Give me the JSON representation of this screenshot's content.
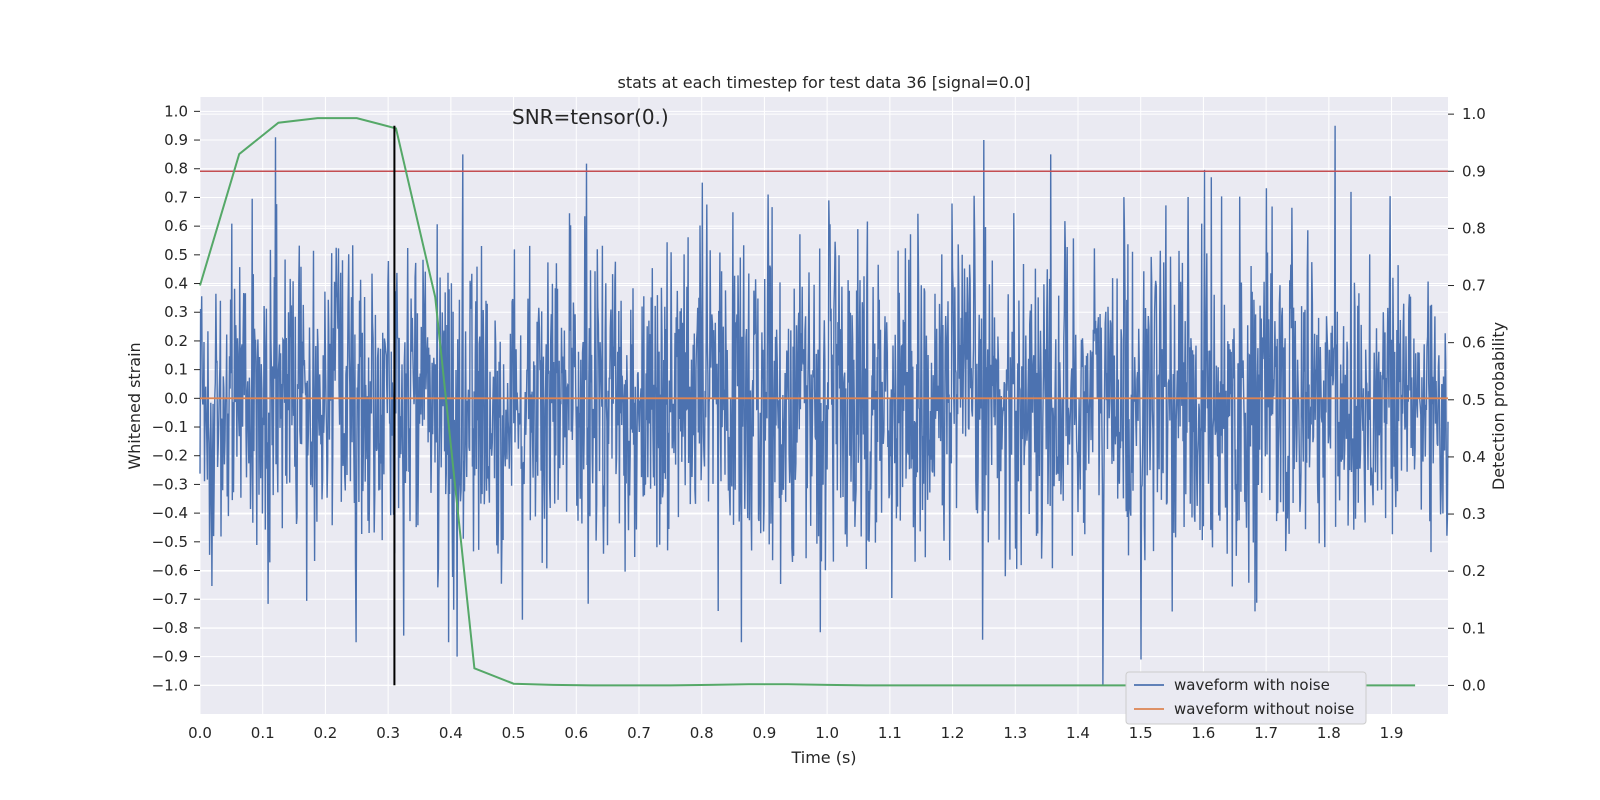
{
  "chart_data": {
    "type": "line",
    "title": "stats at each timestep for test data 36 [signal=0.0]",
    "annotation": "SNR=tensor(0.)",
    "xlabel": "Time (s)",
    "ylabel": "Whitened strain",
    "y2label": "Detection probability",
    "xlim": [
      0.0,
      1.99
    ],
    "ylim": [
      -1.1,
      1.05
    ],
    "y2lim": [
      -0.05,
      1.03
    ],
    "xticks": [
      "0.0",
      "0.1",
      "0.2",
      "0.3",
      "0.4",
      "0.5",
      "0.6",
      "0.7",
      "0.8",
      "0.9",
      "1.0",
      "1.1",
      "1.2",
      "1.3",
      "1.4",
      "1.5",
      "1.6",
      "1.7",
      "1.8",
      "1.9"
    ],
    "yticks": [
      "-1.0",
      "-0.9",
      "-0.8",
      "-0.7",
      "-0.6",
      "-0.5",
      "-0.4",
      "-0.3",
      "-0.2",
      "-0.1",
      "0.0",
      "0.1",
      "0.2",
      "0.3",
      "0.4",
      "0.5",
      "0.6",
      "0.7",
      "0.8",
      "0.9",
      "1.0"
    ],
    "y2ticks": [
      "0.0",
      "0.1",
      "0.2",
      "0.3",
      "0.4",
      "0.5",
      "0.6",
      "0.7",
      "0.8",
      "0.9",
      "1.0"
    ],
    "grid": true,
    "legend_position": "lower-right",
    "series": [
      {
        "name": "waveform with noise",
        "axis": "left",
        "color": "#4c72b0",
        "x_range": [
          0.0,
          1.99
        ],
        "values_estimated": "dense noise, approx 0.0 ± 0.3 with spikes to ±0.95",
        "peaks": [
          {
            "x": 0.12,
            "y": 0.91
          },
          {
            "x": 1.25,
            "y": 0.9
          },
          {
            "x": 1.81,
            "y": 0.95
          },
          {
            "x": 1.44,
            "y": -1.0
          },
          {
            "x": 1.5,
            "y": -0.91
          },
          {
            "x": 0.41,
            "y": -0.9
          }
        ]
      },
      {
        "name": "waveform without noise",
        "axis": "left",
        "color": "#dd8452",
        "x": [
          0.0,
          1.99
        ],
        "y": [
          0.0,
          0.0
        ]
      },
      {
        "axis": "right",
        "color": "#55a868",
        "x": [
          0.0,
          0.0625,
          0.125,
          0.1875,
          0.25,
          0.3125,
          0.375,
          0.4375,
          0.5,
          0.5625,
          0.625,
          0.6875,
          0.75,
          0.8125,
          0.875,
          0.9375,
          1.0,
          1.0625,
          1.125,
          1.1875,
          1.25,
          1.3125,
          1.375,
          1.4375,
          1.5,
          1.5625,
          1.625,
          1.6875,
          1.75,
          1.8125,
          1.875,
          1.9375
        ],
        "y": [
          0.7,
          0.93,
          0.985,
          0.993,
          0.993,
          0.975,
          0.68,
          0.03,
          0.003,
          0.001,
          0.0,
          0.0,
          0.0,
          0.001,
          0.002,
          0.002,
          0.001,
          0.0,
          0.0,
          0.0,
          0.0,
          0.0,
          0.0,
          0.0,
          0.0,
          0.0,
          0.0,
          0.0,
          0.0,
          0.0,
          0.0,
          0.0
        ]
      }
    ],
    "threshold_line": {
      "axis": "right",
      "y": 0.9,
      "color": "#c44e52"
    },
    "marker_line": {
      "x": 0.31,
      "y_from": -1.0,
      "y_to": 0.95,
      "color": "#000000"
    },
    "colors": {
      "plot_bg": "#eaeaf2",
      "grid": "#ffffff"
    }
  }
}
